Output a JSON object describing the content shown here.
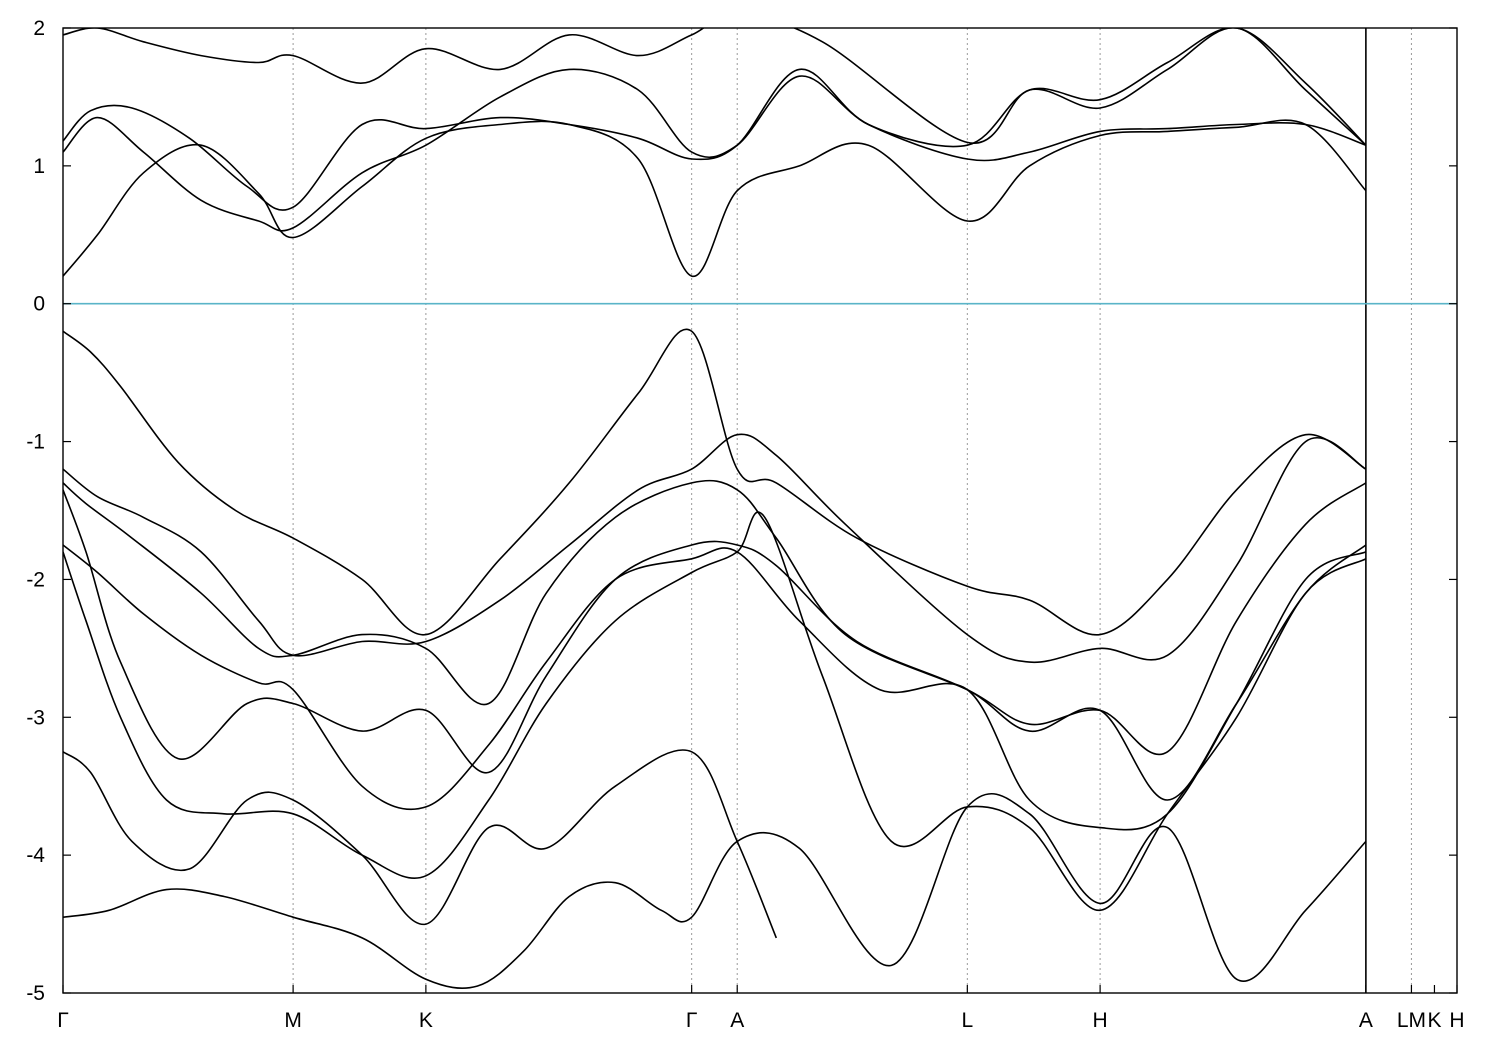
{
  "chart_data": {
    "type": "line",
    "title": "",
    "xlabel": "",
    "ylabel": "",
    "ylim": [
      -5,
      2
    ],
    "yticks": [
      "2",
      "1",
      "0",
      "-1",
      "-2",
      "-3",
      "-4",
      "-5"
    ],
    "ytick_values": [
      2,
      1,
      0,
      -1,
      -2,
      -3,
      -4,
      -5
    ],
    "grid": "vertical dashed lines at high-symmetry points",
    "reference_line": {
      "y": 0,
      "color": "#5ab4c8"
    },
    "segments": [
      {
        "from": "Γ",
        "to": "M",
        "x": [
          0.0,
          1.0
        ]
      },
      {
        "from": "M",
        "to": "K",
        "x": [
          1.0,
          1.577
        ]
      },
      {
        "from": "K",
        "to": "Γ",
        "x": [
          1.577,
          2.732
        ]
      },
      {
        "from": "Γ",
        "to": "A",
        "x": [
          2.732,
          2.93
        ]
      },
      {
        "from": "A",
        "to": "L",
        "x": [
          2.93,
          3.93
        ]
      },
      {
        "from": "L",
        "to": "H",
        "x": [
          3.93,
          4.507
        ]
      },
      {
        "from": "H",
        "to": "A",
        "x": [
          4.507,
          5.662
        ]
      },
      {
        "from": "L",
        "to": "M",
        "x": [
          5.662,
          5.86
        ]
      },
      {
        "from": "K",
        "to": "H",
        "x": [
          5.86,
          6.058
        ]
      }
    ],
    "xticks": [
      {
        "label": "Γ",
        "x": 0.0
      },
      {
        "label": "M",
        "x": 1.0
      },
      {
        "label": "K",
        "x": 1.577
      },
      {
        "label": "Γ",
        "x": 2.732
      },
      {
        "label": "A",
        "x": 2.93
      },
      {
        "label": "L",
        "x": 3.93
      },
      {
        "label": "H",
        "x": 4.507
      },
      {
        "label": "A",
        "x": 5.662
      },
      {
        "label": "LM",
        "x": 5.86
      },
      {
        "label": "K",
        "x": 5.96
      },
      {
        "label": "H",
        "x": 6.058
      }
    ],
    "gridlines_x": [
      1.0,
      1.577,
      2.732,
      2.93,
      3.93,
      4.507,
      5.86
    ],
    "separators_x": [
      5.662
    ],
    "xlim": [
      0,
      6.058
    ],
    "series": [
      {
        "x": [
          0,
          0.12,
          0.25,
          0.5,
          0.75,
          1.0,
          1.3,
          1.577,
          1.9,
          2.2,
          2.5,
          2.732,
          2.93,
          3.1,
          3.45,
          3.93,
          4.2,
          4.507,
          4.8,
          5.1,
          5.4,
          5.662
        ],
        "y": [
          -0.2,
          -0.35,
          -0.6,
          -1.15,
          -1.5,
          -1.7,
          -2.0,
          -2.4,
          -1.85,
          -1.3,
          -0.65,
          -0.2,
          -1.2,
          -1.3,
          -1.7,
          -2.05,
          -2.15,
          -2.4,
          -2.0,
          -1.35,
          -0.95,
          -1.2
        ]
      },
      {
        "x": [
          0,
          0.15,
          0.35,
          0.6,
          0.85,
          1.0,
          1.3,
          1.577,
          1.9,
          2.2,
          2.5,
          2.732,
          2.93,
          3.1,
          3.4,
          3.93,
          4.2,
          4.507,
          4.8,
          5.1,
          5.4,
          5.662
        ],
        "y": [
          -1.2,
          -1.4,
          -1.55,
          -1.8,
          -2.3,
          -2.55,
          -2.45,
          -2.45,
          -2.15,
          -1.75,
          -1.35,
          -1.2,
          -0.95,
          -1.1,
          -1.6,
          -2.4,
          -2.6,
          -2.5,
          -2.55,
          -1.9,
          -1.0,
          -1.2
        ]
      },
      {
        "x": [
          0,
          0.1,
          0.3,
          0.6,
          0.85,
          1.0,
          1.3,
          1.577,
          1.85,
          2.1,
          2.4,
          2.732,
          2.93,
          3.1,
          3.4,
          3.93,
          4.2,
          4.507,
          4.8,
          5.1,
          5.4,
          5.662
        ],
        "y": [
          -1.3,
          -1.45,
          -1.7,
          -2.1,
          -2.5,
          -2.55,
          -2.4,
          -2.5,
          -2.9,
          -2.1,
          -1.55,
          -1.3,
          -1.35,
          -1.7,
          -2.4,
          -2.8,
          -3.05,
          -2.95,
          -3.25,
          -2.3,
          -1.6,
          -1.3
        ]
      },
      {
        "x": [
          0,
          0.1,
          0.25,
          0.5,
          0.8,
          1.0,
          1.3,
          1.577,
          1.85,
          2.1,
          2.4,
          2.732,
          2.93,
          3.1,
          3.45,
          3.93,
          4.2,
          4.507,
          4.8,
          5.1,
          5.4,
          5.662
        ],
        "y": [
          -1.35,
          -1.8,
          -2.6,
          -3.3,
          -2.9,
          -2.9,
          -3.1,
          -2.95,
          -3.4,
          -2.7,
          -2.0,
          -1.75,
          -1.75,
          -1.9,
          -2.45,
          -2.8,
          -3.1,
          -2.95,
          -3.6,
          -2.9,
          -2.1,
          -1.75
        ]
      },
      {
        "x": [
          0,
          0.15,
          0.35,
          0.6,
          0.85,
          1.0,
          1.3,
          1.577,
          1.85,
          2.1,
          2.4,
          2.732,
          2.93,
          3.2,
          3.55,
          3.93,
          4.2,
          4.507,
          4.8,
          5.1,
          5.4,
          5.662
        ],
        "y": [
          -1.75,
          -1.95,
          -2.25,
          -2.55,
          -2.75,
          -2.8,
          -3.5,
          -3.65,
          -3.2,
          -2.6,
          -2.0,
          -1.85,
          -1.8,
          -2.3,
          -2.8,
          -2.8,
          -3.6,
          -3.8,
          -3.7,
          -2.9,
          -2.0,
          -1.8
        ]
      },
      {
        "x": [
          0,
          0.1,
          0.25,
          0.45,
          0.7,
          1.0,
          1.3,
          1.577,
          1.85,
          2.1,
          2.4,
          2.732,
          2.93,
          3.05,
          3.3,
          3.6,
          3.93,
          4.2,
          4.507,
          4.8,
          5.1,
          5.4,
          5.662
        ],
        "y": [
          -1.8,
          -2.3,
          -3.0,
          -3.6,
          -3.7,
          -3.7,
          -4.0,
          -4.15,
          -3.6,
          -2.9,
          -2.3,
          -1.95,
          -1.8,
          -1.55,
          -2.7,
          -3.9,
          -3.65,
          -3.8,
          -4.4,
          -3.7,
          -3.0,
          -2.1,
          -1.85
        ]
      },
      {
        "x": [
          0,
          0.12,
          0.3,
          0.55,
          0.8,
          1.0,
          1.3,
          1.577,
          1.85,
          2.1,
          2.4,
          2.732,
          2.93,
          3.1
        ],
        "y": [
          -3.25,
          -3.4,
          -3.9,
          -4.1,
          -3.6,
          -3.6,
          -4.0,
          -4.5,
          -3.8,
          -3.95,
          -3.5,
          -3.25,
          -3.9,
          -4.6
        ]
      },
      {
        "x": [
          0,
          0.2,
          0.45,
          0.7,
          1.0,
          1.3,
          1.577,
          1.8,
          2.0,
          2.2,
          2.4,
          2.6,
          2.732,
          2.93,
          3.2,
          3.6,
          3.93,
          4.2,
          4.507,
          4.8,
          5.1,
          5.4,
          5.662
        ],
        "y": [
          -4.45,
          -4.4,
          -4.25,
          -4.3,
          -4.45,
          -4.6,
          -4.9,
          -4.95,
          -4.7,
          -4.3,
          -4.2,
          -4.4,
          -4.45,
          -3.9,
          -3.95,
          -4.8,
          -3.65,
          -3.7,
          -4.35,
          -3.8,
          -4.9,
          -4.4,
          -3.9
        ]
      },
      {
        "x": [
          0,
          0.15,
          0.35,
          0.6,
          0.85,
          1.0,
          1.3,
          1.577,
          1.9,
          2.2,
          2.5,
          2.732,
          2.93,
          3.2,
          3.5,
          3.93,
          4.2,
          4.507,
          4.8,
          5.1,
          5.4,
          5.662
        ],
        "y": [
          0.2,
          0.5,
          0.95,
          1.15,
          0.8,
          0.48,
          0.85,
          1.2,
          1.3,
          1.3,
          1.05,
          0.2,
          0.82,
          1.0,
          1.15,
          0.6,
          1.0,
          1.22,
          1.25,
          1.28,
          1.3,
          0.82
        ]
      },
      {
        "x": [
          0,
          0.15,
          0.35,
          0.6,
          0.85,
          1.0,
          1.3,
          1.577,
          1.9,
          2.2,
          2.5,
          2.732,
          2.93,
          3.2,
          3.5,
          3.93,
          4.2,
          4.507,
          4.8,
          5.1,
          5.4,
          5.662
        ],
        "y": [
          1.1,
          1.35,
          1.1,
          0.75,
          0.6,
          0.55,
          0.95,
          1.15,
          1.5,
          1.7,
          1.55,
          1.1,
          1.15,
          1.65,
          1.3,
          1.05,
          1.1,
          1.25,
          1.27,
          1.3,
          1.3,
          1.15
        ]
      },
      {
        "x": [
          0,
          0.12,
          0.3,
          0.55,
          0.8,
          1.0,
          1.3,
          1.577,
          1.9,
          2.2,
          2.5,
          2.732,
          2.93,
          3.2,
          3.5,
          3.93,
          4.2,
          4.507,
          4.8,
          5.1,
          5.4,
          5.662
        ],
        "y": [
          1.18,
          1.4,
          1.42,
          1.2,
          0.85,
          0.7,
          1.3,
          1.27,
          1.35,
          1.3,
          1.2,
          1.05,
          1.15,
          1.7,
          1.3,
          1.15,
          1.55,
          1.48,
          1.75,
          2.0,
          1.6,
          1.15
        ]
      },
      {
        "x": [
          0,
          0.15,
          0.35,
          0.6,
          0.85,
          1.0,
          1.3,
          1.577,
          1.9,
          2.2,
          2.5,
          2.732,
          2.93,
          3.3,
          3.93,
          4.2,
          4.507,
          4.8,
          5.1,
          5.4,
          5.662
        ],
        "y": [
          1.95,
          2.0,
          1.9,
          1.8,
          1.75,
          1.8,
          1.6,
          1.85,
          1.7,
          1.95,
          1.8,
          1.95,
          2.1,
          1.9,
          1.17,
          1.55,
          1.42,
          1.7,
          2.0,
          1.55,
          1.15
        ]
      }
    ]
  }
}
